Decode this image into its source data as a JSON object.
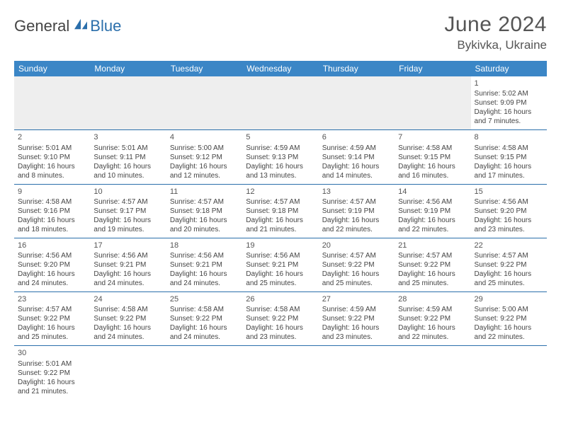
{
  "brand": {
    "part1": "General",
    "part2": "Blue"
  },
  "title": "June 2024",
  "location": "Bykivka, Ukraine",
  "colors": {
    "header_bg": "#3b86c6",
    "header_text": "#ffffff",
    "border": "#2b6fab",
    "empty_bg": "#eeeeee",
    "text": "#444444",
    "brand_blue": "#2b6fab"
  },
  "weekdays": [
    "Sunday",
    "Monday",
    "Tuesday",
    "Wednesday",
    "Thursday",
    "Friday",
    "Saturday"
  ],
  "weeks": [
    [
      null,
      null,
      null,
      null,
      null,
      null,
      {
        "n": "1",
        "sr": "Sunrise: 5:02 AM",
        "ss": "Sunset: 9:09 PM",
        "dl1": "Daylight: 16 hours",
        "dl2": "and 7 minutes."
      }
    ],
    [
      {
        "n": "2",
        "sr": "Sunrise: 5:01 AM",
        "ss": "Sunset: 9:10 PM",
        "dl1": "Daylight: 16 hours",
        "dl2": "and 8 minutes."
      },
      {
        "n": "3",
        "sr": "Sunrise: 5:01 AM",
        "ss": "Sunset: 9:11 PM",
        "dl1": "Daylight: 16 hours",
        "dl2": "and 10 minutes."
      },
      {
        "n": "4",
        "sr": "Sunrise: 5:00 AM",
        "ss": "Sunset: 9:12 PM",
        "dl1": "Daylight: 16 hours",
        "dl2": "and 12 minutes."
      },
      {
        "n": "5",
        "sr": "Sunrise: 4:59 AM",
        "ss": "Sunset: 9:13 PM",
        "dl1": "Daylight: 16 hours",
        "dl2": "and 13 minutes."
      },
      {
        "n": "6",
        "sr": "Sunrise: 4:59 AM",
        "ss": "Sunset: 9:14 PM",
        "dl1": "Daylight: 16 hours",
        "dl2": "and 14 minutes."
      },
      {
        "n": "7",
        "sr": "Sunrise: 4:58 AM",
        "ss": "Sunset: 9:15 PM",
        "dl1": "Daylight: 16 hours",
        "dl2": "and 16 minutes."
      },
      {
        "n": "8",
        "sr": "Sunrise: 4:58 AM",
        "ss": "Sunset: 9:15 PM",
        "dl1": "Daylight: 16 hours",
        "dl2": "and 17 minutes."
      }
    ],
    [
      {
        "n": "9",
        "sr": "Sunrise: 4:58 AM",
        "ss": "Sunset: 9:16 PM",
        "dl1": "Daylight: 16 hours",
        "dl2": "and 18 minutes."
      },
      {
        "n": "10",
        "sr": "Sunrise: 4:57 AM",
        "ss": "Sunset: 9:17 PM",
        "dl1": "Daylight: 16 hours",
        "dl2": "and 19 minutes."
      },
      {
        "n": "11",
        "sr": "Sunrise: 4:57 AM",
        "ss": "Sunset: 9:18 PM",
        "dl1": "Daylight: 16 hours",
        "dl2": "and 20 minutes."
      },
      {
        "n": "12",
        "sr": "Sunrise: 4:57 AM",
        "ss": "Sunset: 9:18 PM",
        "dl1": "Daylight: 16 hours",
        "dl2": "and 21 minutes."
      },
      {
        "n": "13",
        "sr": "Sunrise: 4:57 AM",
        "ss": "Sunset: 9:19 PM",
        "dl1": "Daylight: 16 hours",
        "dl2": "and 22 minutes."
      },
      {
        "n": "14",
        "sr": "Sunrise: 4:56 AM",
        "ss": "Sunset: 9:19 PM",
        "dl1": "Daylight: 16 hours",
        "dl2": "and 22 minutes."
      },
      {
        "n": "15",
        "sr": "Sunrise: 4:56 AM",
        "ss": "Sunset: 9:20 PM",
        "dl1": "Daylight: 16 hours",
        "dl2": "and 23 minutes."
      }
    ],
    [
      {
        "n": "16",
        "sr": "Sunrise: 4:56 AM",
        "ss": "Sunset: 9:20 PM",
        "dl1": "Daylight: 16 hours",
        "dl2": "and 24 minutes."
      },
      {
        "n": "17",
        "sr": "Sunrise: 4:56 AM",
        "ss": "Sunset: 9:21 PM",
        "dl1": "Daylight: 16 hours",
        "dl2": "and 24 minutes."
      },
      {
        "n": "18",
        "sr": "Sunrise: 4:56 AM",
        "ss": "Sunset: 9:21 PM",
        "dl1": "Daylight: 16 hours",
        "dl2": "and 24 minutes."
      },
      {
        "n": "19",
        "sr": "Sunrise: 4:56 AM",
        "ss": "Sunset: 9:21 PM",
        "dl1": "Daylight: 16 hours",
        "dl2": "and 25 minutes."
      },
      {
        "n": "20",
        "sr": "Sunrise: 4:57 AM",
        "ss": "Sunset: 9:22 PM",
        "dl1": "Daylight: 16 hours",
        "dl2": "and 25 minutes."
      },
      {
        "n": "21",
        "sr": "Sunrise: 4:57 AM",
        "ss": "Sunset: 9:22 PM",
        "dl1": "Daylight: 16 hours",
        "dl2": "and 25 minutes."
      },
      {
        "n": "22",
        "sr": "Sunrise: 4:57 AM",
        "ss": "Sunset: 9:22 PM",
        "dl1": "Daylight: 16 hours",
        "dl2": "and 25 minutes."
      }
    ],
    [
      {
        "n": "23",
        "sr": "Sunrise: 4:57 AM",
        "ss": "Sunset: 9:22 PM",
        "dl1": "Daylight: 16 hours",
        "dl2": "and 25 minutes."
      },
      {
        "n": "24",
        "sr": "Sunrise: 4:58 AM",
        "ss": "Sunset: 9:22 PM",
        "dl1": "Daylight: 16 hours",
        "dl2": "and 24 minutes."
      },
      {
        "n": "25",
        "sr": "Sunrise: 4:58 AM",
        "ss": "Sunset: 9:22 PM",
        "dl1": "Daylight: 16 hours",
        "dl2": "and 24 minutes."
      },
      {
        "n": "26",
        "sr": "Sunrise: 4:58 AM",
        "ss": "Sunset: 9:22 PM",
        "dl1": "Daylight: 16 hours",
        "dl2": "and 23 minutes."
      },
      {
        "n": "27",
        "sr": "Sunrise: 4:59 AM",
        "ss": "Sunset: 9:22 PM",
        "dl1": "Daylight: 16 hours",
        "dl2": "and 23 minutes."
      },
      {
        "n": "28",
        "sr": "Sunrise: 4:59 AM",
        "ss": "Sunset: 9:22 PM",
        "dl1": "Daylight: 16 hours",
        "dl2": "and 22 minutes."
      },
      {
        "n": "29",
        "sr": "Sunrise: 5:00 AM",
        "ss": "Sunset: 9:22 PM",
        "dl1": "Daylight: 16 hours",
        "dl2": "and 22 minutes."
      }
    ],
    [
      {
        "n": "30",
        "sr": "Sunrise: 5:01 AM",
        "ss": "Sunset: 9:22 PM",
        "dl1": "Daylight: 16 hours",
        "dl2": "and 21 minutes."
      },
      null,
      null,
      null,
      null,
      null,
      null
    ]
  ]
}
